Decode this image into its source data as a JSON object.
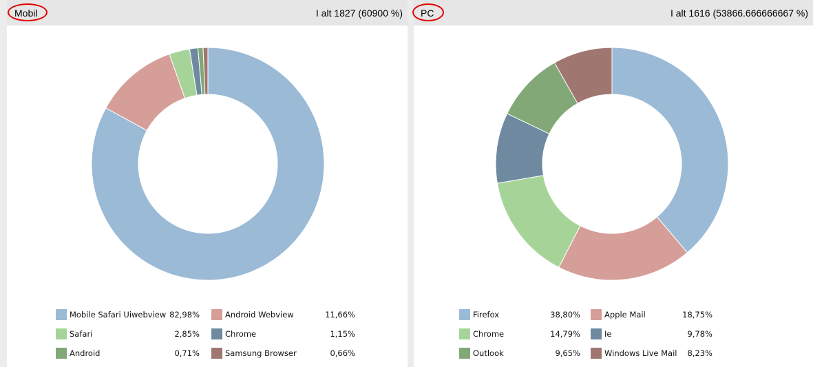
{
  "panels": [
    {
      "title": "Mobil",
      "total": "I alt 1827 (60900 %)",
      "legend": [
        {
          "name": "Mobile Safari Uiwebview",
          "pct": "82,98%",
          "color": "#9bbad6"
        },
        {
          "name": "Android Webview",
          "pct": "11,66%",
          "color": "#d69e98"
        },
        {
          "name": "Safari",
          "pct": "2,85%",
          "color": "#a6d498"
        },
        {
          "name": "Chrome",
          "pct": "1,15%",
          "color": "#6f8aa0"
        },
        {
          "name": "Android",
          "pct": "0,71%",
          "color": "#81a876"
        },
        {
          "name": "Samsung Browser",
          "pct": "0,66%",
          "color": "#a07770"
        }
      ]
    },
    {
      "title": "PC",
      "total": "I alt 1616 (53866.666666667 %)",
      "legend": [
        {
          "name": "Firefox",
          "pct": "38,80%",
          "color": "#9bbad6"
        },
        {
          "name": "Apple Mail",
          "pct": "18,75%",
          "color": "#d69e98"
        },
        {
          "name": "Chrome",
          "pct": "14,79%",
          "color": "#a6d498"
        },
        {
          "name": "Ie",
          "pct": "9,78%",
          "color": "#6f8aa0"
        },
        {
          "name": "Outlook",
          "pct": "9,65%",
          "color": "#81a876"
        },
        {
          "name": "Windows Live Mail",
          "pct": "8,23%",
          "color": "#a07770"
        }
      ]
    }
  ],
  "chart_data": [
    {
      "type": "pie",
      "title": "Mobil",
      "categories": [
        "Mobile Safari Uiwebview",
        "Android Webview",
        "Safari",
        "Chrome",
        "Android",
        "Samsung Browser"
      ],
      "values": [
        82.98,
        11.66,
        2.85,
        1.15,
        0.71,
        0.66
      ],
      "colors": [
        "#9bbad6",
        "#d69e98",
        "#a6d498",
        "#6f8aa0",
        "#81a876",
        "#a07770"
      ],
      "donut": true,
      "legend_position": "bottom"
    },
    {
      "type": "pie",
      "title": "PC",
      "categories": [
        "Firefox",
        "Apple Mail",
        "Chrome",
        "Ie",
        "Outlook",
        "Windows Live Mail"
      ],
      "values": [
        38.8,
        18.75,
        14.79,
        9.78,
        9.65,
        8.23
      ],
      "colors": [
        "#9bbad6",
        "#d69e98",
        "#a6d498",
        "#6f8aa0",
        "#81a876",
        "#a07770"
      ],
      "donut": true,
      "legend_position": "bottom"
    }
  ]
}
